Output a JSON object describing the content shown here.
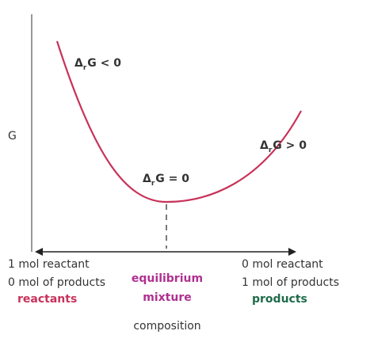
{
  "axis_label": "G",
  "curve_labels": [
    {
      "symbol": "Δ",
      "subscript": "r",
      "relation": "G < 0"
    },
    {
      "symbol": "Δ",
      "subscript": "r",
      "relation": "G = 0"
    },
    {
      "symbol": "Δ",
      "subscript": "r",
      "relation": "G > 0"
    }
  ],
  "left": {
    "line1": "1 mol reactant",
    "line2": "0 mol of products",
    "tag": "reactants"
  },
  "middle": {
    "line1": "equilibrium",
    "line2": "mixture"
  },
  "right": {
    "line1": "0 mol reactant",
    "line2": "1 mol of products",
    "tag": "products"
  },
  "x_label": "composition"
}
